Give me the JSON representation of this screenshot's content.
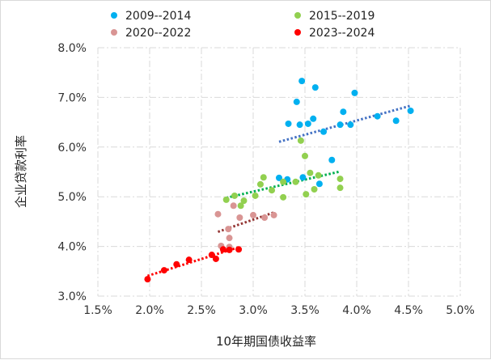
{
  "chart_data": {
    "type": "scatter",
    "title": "",
    "xlabel": "10年期国债收益率",
    "ylabel": "企业贷款利率",
    "xlim": [
      1.5,
      5.0
    ],
    "ylim": [
      3.0,
      8.0
    ],
    "xticks": [
      "1.5%",
      "2.0%",
      "2.5%",
      "3.0%",
      "3.5%",
      "4.0%",
      "4.5%",
      "5.0%"
    ],
    "yticks": [
      "3.0%",
      "4.0%",
      "5.0%",
      "6.0%",
      "7.0%",
      "8.0%"
    ],
    "grid": true,
    "legend_position": "top",
    "trendlines": "linear, dotted, per series",
    "series": [
      {
        "name": "2009--2014",
        "color": "#00b0f0",
        "trend_color": "#4472c4",
        "points": [
          [
            3.47,
            7.33
          ],
          [
            3.6,
            7.2
          ],
          [
            3.98,
            7.09
          ],
          [
            3.42,
            6.91
          ],
          [
            3.87,
            6.71
          ],
          [
            3.34,
            6.47
          ],
          [
            3.45,
            6.45
          ],
          [
            3.53,
            6.47
          ],
          [
            3.58,
            6.57
          ],
          [
            3.68,
            6.31
          ],
          [
            3.84,
            6.45
          ],
          [
            3.94,
            6.45
          ],
          [
            4.2,
            6.62
          ],
          [
            4.38,
            6.53
          ],
          [
            4.52,
            6.73
          ],
          [
            3.76,
            5.74
          ],
          [
            3.25,
            5.38
          ],
          [
            3.33,
            5.35
          ],
          [
            3.48,
            5.39
          ],
          [
            3.64,
            5.26
          ]
        ]
      },
      {
        "name": "2015--2019",
        "color": "#92d050",
        "trend_color": "#00b050",
        "points": [
          [
            3.46,
            6.13
          ],
          [
            3.5,
            5.82
          ],
          [
            3.1,
            5.39
          ],
          [
            3.07,
            5.25
          ],
          [
            2.74,
            4.94
          ],
          [
            2.82,
            5.02
          ],
          [
            2.91,
            4.92
          ],
          [
            2.88,
            4.82
          ],
          [
            3.02,
            5.02
          ],
          [
            3.18,
            5.13
          ],
          [
            3.29,
            5.3
          ],
          [
            3.41,
            5.3
          ],
          [
            3.55,
            5.48
          ],
          [
            3.63,
            5.43
          ],
          [
            3.59,
            5.15
          ],
          [
            3.51,
            5.05
          ],
          [
            3.29,
            4.99
          ],
          [
            3.84,
            5.36
          ],
          [
            3.84,
            5.18
          ]
        ]
      },
      {
        "name": "2020--2022",
        "color": "#d99594",
        "trend_color": "#943634",
        "points": [
          [
            2.66,
            4.65
          ],
          [
            2.81,
            4.82
          ],
          [
            2.87,
            4.58
          ],
          [
            3.0,
            4.63
          ],
          [
            3.11,
            4.58
          ],
          [
            3.2,
            4.63
          ],
          [
            2.76,
            4.35
          ],
          [
            2.77,
            4.17
          ],
          [
            2.69,
            4.01
          ],
          [
            2.77,
            3.99
          ]
        ]
      },
      {
        "name": "2023--2024",
        "color": "#ff0000",
        "trend_color": "#ff0000",
        "points": [
          [
            1.98,
            3.34
          ],
          [
            2.14,
            3.52
          ],
          [
            2.26,
            3.64
          ],
          [
            2.38,
            3.73
          ],
          [
            2.6,
            3.83
          ],
          [
            2.64,
            3.75
          ],
          [
            2.71,
            3.94
          ],
          [
            2.77,
            3.93
          ],
          [
            2.86,
            3.94
          ]
        ]
      }
    ]
  }
}
